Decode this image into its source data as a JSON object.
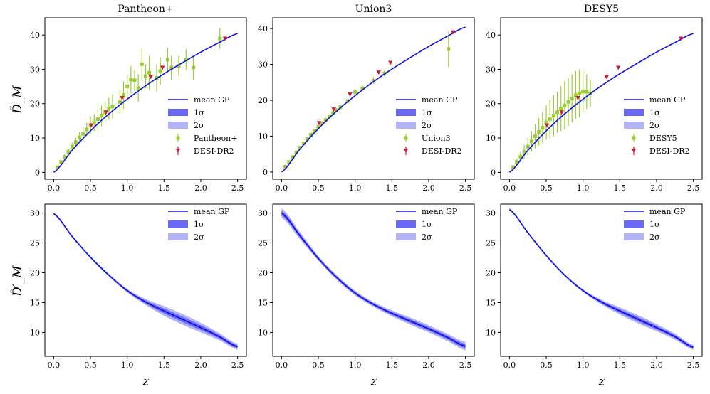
{
  "figure": {
    "columns": [
      "Pantheon+",
      "Union3",
      "DESY5"
    ],
    "xlabel": "z",
    "ylabel_top": "D̃_M",
    "ylabel_bottom": "D̃′_M"
  },
  "colors": {
    "mean": "#1010e0",
    "band1": "#6a6af5",
    "band2": "#b3b3f7",
    "sn": "#9acd32",
    "desi": "#dc143c"
  },
  "chart_data": [
    {
      "type": "scatter",
      "title": "Pantheon+",
      "xlabel": "",
      "ylabel": "D̃_M",
      "xlim": [
        -0.12,
        2.62
      ],
      "ylim": [
        -2,
        45
      ],
      "xticks": [
        0.0,
        0.5,
        1.0,
        1.5,
        2.0,
        2.5
      ],
      "xtick_labels": [
        "0.0",
        "0.5",
        "1.0",
        "1.5",
        "2.0",
        "2.5"
      ],
      "yticks": [
        0,
        10,
        20,
        30,
        40
      ],
      "ytick_labels": [
        "0",
        "10",
        "20",
        "30",
        "40"
      ],
      "legend": [
        "mean GP",
        "1σ",
        "2σ",
        "Pantheon+",
        "DESI-DR2"
      ],
      "legend_position": "lower-right",
      "mean_gp": {
        "x": [
          0.0,
          0.25,
          0.5,
          0.75,
          1.0,
          1.25,
          1.5,
          1.75,
          2.0,
          2.25,
          2.5
        ],
        "y": [
          0.0,
          6.4,
          12.1,
          17.0,
          21.3,
          25.2,
          28.7,
          31.9,
          35.0,
          37.8,
          40.4
        ]
      },
      "sn_points": [
        [
          0.05,
          1.5,
          0.3
        ],
        [
          0.1,
          3.0,
          0.5
        ],
        [
          0.15,
          4.5,
          0.7
        ],
        [
          0.2,
          6.0,
          0.9
        ],
        [
          0.25,
          7.5,
          1.1
        ],
        [
          0.3,
          8.8,
          1.3
        ],
        [
          0.35,
          10.2,
          1.5
        ],
        [
          0.4,
          11.2,
          2.0
        ],
        [
          0.45,
          12.5,
          2.0
        ],
        [
          0.5,
          13.8,
          2.5
        ],
        [
          0.55,
          14.5,
          2.5
        ],
        [
          0.6,
          15.5,
          2.8
        ],
        [
          0.65,
          16.5,
          3.0
        ],
        [
          0.7,
          17.5,
          3.0
        ],
        [
          0.75,
          18.5,
          3.2
        ],
        [
          0.8,
          19.2,
          3.5
        ],
        [
          0.9,
          20.5,
          3.5
        ],
        [
          0.95,
          22.5,
          4.0
        ],
        [
          1.0,
          25.0,
          3.5
        ],
        [
          1.05,
          27.0,
          4.0
        ],
        [
          1.1,
          26.8,
          3.0
        ],
        [
          1.15,
          24.5,
          4.0
        ],
        [
          1.2,
          31.5,
          4.5
        ],
        [
          1.25,
          28.0,
          3.5
        ],
        [
          1.3,
          29.0,
          5.0
        ],
        [
          1.4,
          27.5,
          4.0
        ],
        [
          1.45,
          29.5,
          4.0
        ],
        [
          1.55,
          32.8,
          3.5
        ],
        [
          1.6,
          30.5,
          3.5
        ],
        [
          1.7,
          31.0,
          3.0
        ],
        [
          1.8,
          32.8,
          3.0
        ],
        [
          1.9,
          30.5,
          3.5
        ],
        [
          2.26,
          39.0,
          3.0
        ]
      ],
      "desi": {
        "x": [
          0.51,
          0.71,
          0.93,
          1.32,
          1.48,
          2.33
        ],
        "y": [
          13.6,
          17.4,
          21.6,
          27.7,
          30.4,
          38.9
        ]
      }
    },
    {
      "type": "scatter",
      "title": "Union3",
      "xlabel": "",
      "ylabel": "",
      "xlim": [
        -0.12,
        2.62
      ],
      "ylim": [
        -2,
        43
      ],
      "xticks": [
        0.0,
        0.5,
        1.0,
        1.5,
        2.0,
        2.5
      ],
      "xtick_labels": [
        "0.0",
        "0.5",
        "1.0",
        "1.5",
        "2.0",
        "2.5"
      ],
      "yticks": [
        0,
        10,
        20,
        30,
        40
      ],
      "ytick_labels": [
        "0",
        "10",
        "20",
        "30",
        "40"
      ],
      "legend": [
        "mean GP",
        "1σ",
        "2σ",
        "Union3",
        "DESI-DR2"
      ],
      "legend_position": "lower-right",
      "mean_gp": {
        "x": [
          0.0,
          0.25,
          0.5,
          0.75,
          1.0,
          1.25,
          1.5,
          1.75,
          2.0,
          2.25,
          2.5
        ],
        "y": [
          0.0,
          6.4,
          12.1,
          17.0,
          21.3,
          25.2,
          28.7,
          31.9,
          35.0,
          37.8,
          40.4
        ]
      },
      "sn_points": [
        [
          0.05,
          1.5,
          0.4
        ],
        [
          0.1,
          2.8,
          0.4
        ],
        [
          0.15,
          4.2,
          0.4
        ],
        [
          0.2,
          5.5,
          0.4
        ],
        [
          0.25,
          6.8,
          0.4
        ],
        [
          0.3,
          8.0,
          0.4
        ],
        [
          0.35,
          9.2,
          0.4
        ],
        [
          0.4,
          10.4,
          0.5
        ],
        [
          0.45,
          11.4,
          0.5
        ],
        [
          0.5,
          12.6,
          0.5
        ],
        [
          0.55,
          13.6,
          0.5
        ],
        [
          0.6,
          14.5,
          0.5
        ],
        [
          0.65,
          15.5,
          0.5
        ],
        [
          0.7,
          16.4,
          0.6
        ],
        [
          0.75,
          17.2,
          0.6
        ],
        [
          0.8,
          18.1,
          0.6
        ],
        [
          0.9,
          19.8,
          0.6
        ],
        [
          1.0,
          22.3,
          0.8
        ],
        [
          1.1,
          23.3,
          0.8
        ],
        [
          1.25,
          25.5,
          1.0
        ],
        [
          1.4,
          27.5,
          1.0
        ],
        [
          2.27,
          34.3,
          5.0
        ]
      ],
      "desi": {
        "x": [
          0.51,
          0.71,
          0.93,
          1.32,
          1.48,
          2.33
        ],
        "y": [
          13.6,
          17.4,
          21.6,
          27.7,
          30.4,
          38.9
        ]
      }
    },
    {
      "type": "scatter",
      "title": "DESY5",
      "xlabel": "",
      "ylabel": "",
      "xlim": [
        -0.12,
        2.62
      ],
      "ylim": [
        -2,
        45
      ],
      "xticks": [
        0.0,
        0.5,
        1.0,
        1.5,
        2.0,
        2.5
      ],
      "xtick_labels": [
        "0.0",
        "0.5",
        "1.0",
        "1.5",
        "2.0",
        "2.5"
      ],
      "yticks": [
        0,
        10,
        20,
        30,
        40
      ],
      "ytick_labels": [
        "0",
        "10",
        "20",
        "30",
        "40"
      ],
      "legend": [
        "mean GP",
        "1σ",
        "2σ",
        "DESY5",
        "DESI-DR2"
      ],
      "legend_position": "lower-right",
      "mean_gp": {
        "x": [
          0.0,
          0.25,
          0.5,
          0.75,
          1.0,
          1.25,
          1.5,
          1.75,
          2.0,
          2.25,
          2.5
        ],
        "y": [
          0.0,
          6.4,
          12.1,
          17.0,
          21.3,
          25.2,
          28.7,
          31.9,
          35.0,
          37.8,
          40.4
        ]
      },
      "sn_points": [
        [
          0.05,
          1.5,
          0.5
        ],
        [
          0.1,
          3.0,
          1.0
        ],
        [
          0.15,
          4.5,
          1.5
        ],
        [
          0.2,
          6.0,
          2.0
        ],
        [
          0.25,
          7.5,
          2.5
        ],
        [
          0.3,
          9.0,
          3.0
        ],
        [
          0.35,
          10.5,
          3.5
        ],
        [
          0.4,
          11.8,
          4.0
        ],
        [
          0.45,
          13.0,
          4.5
        ],
        [
          0.5,
          14.5,
          5.0
        ],
        [
          0.55,
          15.5,
          5.5
        ],
        [
          0.6,
          16.5,
          6.0
        ],
        [
          0.65,
          17.5,
          6.0
        ],
        [
          0.7,
          18.5,
          6.5
        ],
        [
          0.75,
          19.5,
          7.0
        ],
        [
          0.8,
          20.5,
          7.0
        ],
        [
          0.85,
          21.5,
          7.0
        ],
        [
          0.9,
          22.5,
          7.0
        ],
        [
          0.95,
          23.0,
          7.0
        ],
        [
          1.0,
          23.5,
          6.0
        ],
        [
          1.05,
          23.5,
          5.0
        ],
        [
          1.1,
          23.0,
          4.0
        ]
      ],
      "desi": {
        "x": [
          0.51,
          0.71,
          0.93,
          1.32,
          1.48,
          2.33
        ],
        "y": [
          13.6,
          17.4,
          21.6,
          27.7,
          30.4,
          38.9
        ]
      }
    },
    {
      "type": "line",
      "title": "",
      "xlabel": "z",
      "ylabel": "D̃′_M",
      "xlim": [
        -0.12,
        2.62
      ],
      "ylim": [
        6,
        31.5
      ],
      "xticks": [
        0.0,
        0.5,
        1.0,
        1.5,
        2.0,
        2.5
      ],
      "xtick_labels": [
        "0.0",
        "0.5",
        "1.0",
        "1.5",
        "2.0",
        "2.5"
      ],
      "yticks": [
        10,
        15,
        20,
        25,
        30
      ],
      "ytick_labels": [
        "10",
        "15",
        "20",
        "25",
        "30"
      ],
      "legend": [
        "mean GP",
        "1σ",
        "2σ"
      ],
      "legend_position": "top-right",
      "mean_gp": {
        "x": [
          0.0,
          0.25,
          0.5,
          0.75,
          1.0,
          1.25,
          1.5,
          1.75,
          2.0,
          2.25,
          2.5
        ],
        "y": [
          29.9,
          26.1,
          22.6,
          19.6,
          17.0,
          15.1,
          13.6,
          12.2,
          10.8,
          9.3,
          7.6
        ]
      },
      "sigma1": [
        0.1,
        0.1,
        0.1,
        0.12,
        0.15,
        0.25,
        0.4,
        0.45,
        0.4,
        0.3,
        0.25
      ],
      "sigma2": [
        0.2,
        0.2,
        0.2,
        0.24,
        0.3,
        0.5,
        0.8,
        0.9,
        0.8,
        0.6,
        0.5
      ]
    },
    {
      "type": "line",
      "title": "",
      "xlabel": "z",
      "ylabel": "",
      "xlim": [
        -0.12,
        2.62
      ],
      "ylim": [
        6,
        31.5
      ],
      "xticks": [
        0.0,
        0.5,
        1.0,
        1.5,
        2.0,
        2.5
      ],
      "xtick_labels": [
        "0.0",
        "0.5",
        "1.0",
        "1.5",
        "2.0",
        "2.5"
      ],
      "yticks": [
        10,
        15,
        20,
        25,
        30
      ],
      "ytick_labels": [
        "10",
        "15",
        "20",
        "25",
        "30"
      ],
      "legend": [
        "mean GP",
        "1σ",
        "2σ"
      ],
      "legend_position": "top-right",
      "mean_gp": {
        "x": [
          0.0,
          0.25,
          0.5,
          0.75,
          1.0,
          1.25,
          1.5,
          1.75,
          2.0,
          2.25,
          2.5
        ],
        "y": [
          30.0,
          26.2,
          22.4,
          19.2,
          16.6,
          14.7,
          13.2,
          11.9,
          10.6,
          9.2,
          7.7
        ]
      },
      "sigma1": [
        0.4,
        0.3,
        0.2,
        0.2,
        0.2,
        0.2,
        0.25,
        0.3,
        0.3,
        0.3,
        0.35
      ],
      "sigma2": [
        0.8,
        0.6,
        0.4,
        0.4,
        0.4,
        0.4,
        0.5,
        0.6,
        0.6,
        0.6,
        0.7
      ]
    },
    {
      "type": "line",
      "title": "",
      "xlabel": "z",
      "ylabel": "",
      "xlim": [
        -0.12,
        2.62
      ],
      "ylim": [
        6,
        31.5
      ],
      "xticks": [
        0.0,
        0.5,
        1.0,
        1.5,
        2.0,
        2.5
      ],
      "xtick_labels": [
        "0.0",
        "0.5",
        "1.0",
        "1.5",
        "2.0",
        "2.5"
      ],
      "yticks": [
        10,
        15,
        20,
        25,
        30
      ],
      "ytick_labels": [
        "10",
        "15",
        "20",
        "25",
        "30"
      ],
      "legend": [
        "mean GP",
        "1σ",
        "2σ"
      ],
      "legend_position": "top-right",
      "mean_gp": {
        "x": [
          0.0,
          0.25,
          0.5,
          0.75,
          1.0,
          1.25,
          1.5,
          1.75,
          2.0,
          2.25,
          2.5
        ],
        "y": [
          30.6,
          26.7,
          22.9,
          19.6,
          17.0,
          15.1,
          13.6,
          12.2,
          10.8,
          9.3,
          7.5
        ]
      },
      "sigma1": [
        0.1,
        0.1,
        0.1,
        0.1,
        0.12,
        0.2,
        0.3,
        0.35,
        0.3,
        0.25,
        0.2
      ],
      "sigma2": [
        0.2,
        0.2,
        0.2,
        0.2,
        0.24,
        0.4,
        0.6,
        0.7,
        0.6,
        0.5,
        0.4
      ]
    }
  ]
}
